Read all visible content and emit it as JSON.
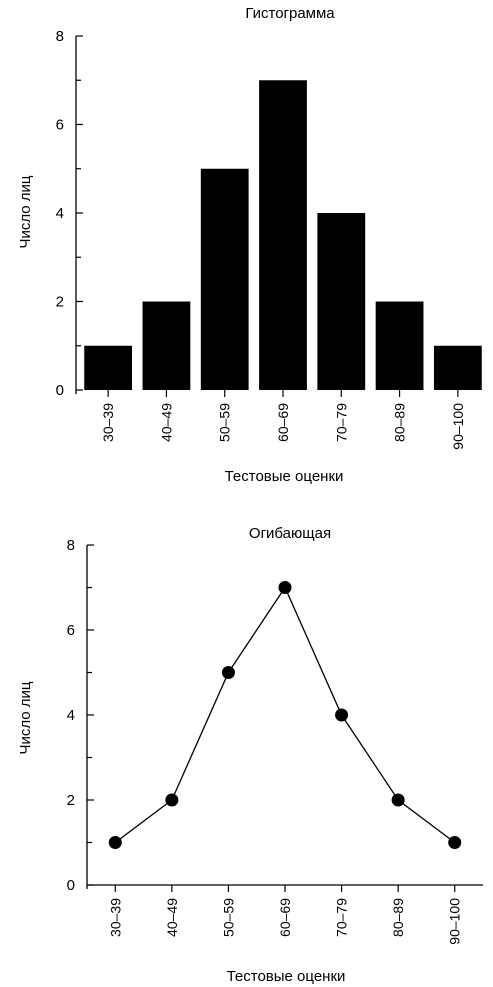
{
  "chart_data": [
    {
      "type": "bar",
      "title": "Гистограмма",
      "xlabel": "Тестовые оценки",
      "ylabel": "Число лиц",
      "categories": [
        "30–39",
        "40–49",
        "50–59",
        "60–69",
        "70–79",
        "80–89",
        "90–100"
      ],
      "values": [
        1,
        2,
        5,
        7,
        4,
        2,
        1
      ],
      "ylim": [
        0,
        8
      ],
      "yticks": [
        "0",
        "2",
        "4",
        "6",
        "8"
      ],
      "grid": false
    },
    {
      "type": "line",
      "title": "Огибающая",
      "xlabel": "Тестовые оценки",
      "ylabel": "Число лиц",
      "categories": [
        "30–39",
        "40–49",
        "50–59",
        "60–69",
        "70–79",
        "80–89",
        "90–100"
      ],
      "values": [
        1,
        2,
        5,
        7,
        4,
        2,
        1
      ],
      "ylim": [
        0,
        8
      ],
      "yticks": [
        "0",
        "2",
        "4",
        "6",
        "8"
      ],
      "markers": true,
      "grid": false
    }
  ]
}
